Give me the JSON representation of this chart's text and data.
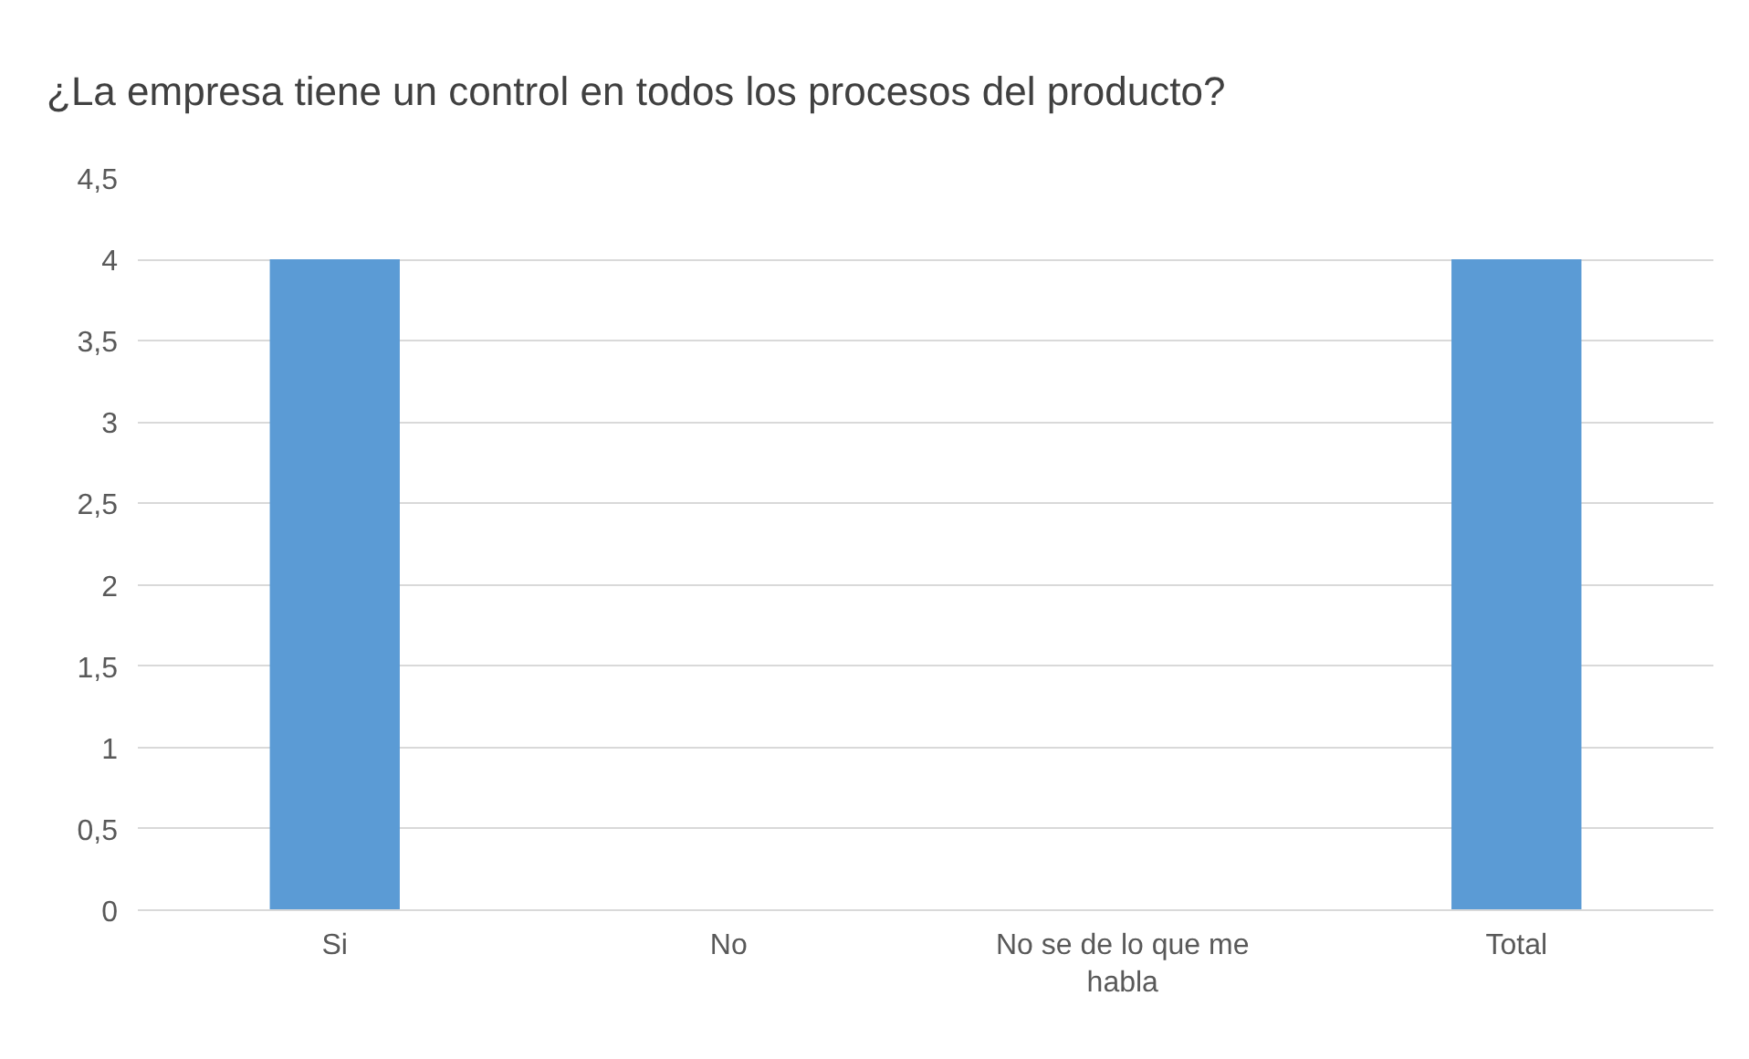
{
  "chart_data": {
    "type": "bar",
    "title": "¿La empresa tiene un control en todos los procesos del producto?",
    "categories": [
      "Si",
      "No",
      "No se de lo que me habla",
      "Total"
    ],
    "values": [
      4,
      0,
      0,
      4
    ],
    "color": "#5b9bd5",
    "ylim": [
      0,
      4.5
    ],
    "yticks": [
      0,
      {
        "value": 0.5,
        "label": "0,5"
      },
      1,
      {
        "value": 1.5,
        "label": "1,5"
      },
      2,
      {
        "value": 2.5,
        "label": "2,5"
      },
      3,
      {
        "value": 3.5,
        "label": "3,5"
      },
      4,
      {
        "value": 4.5,
        "label": "4,5"
      }
    ],
    "grid": "y"
  }
}
